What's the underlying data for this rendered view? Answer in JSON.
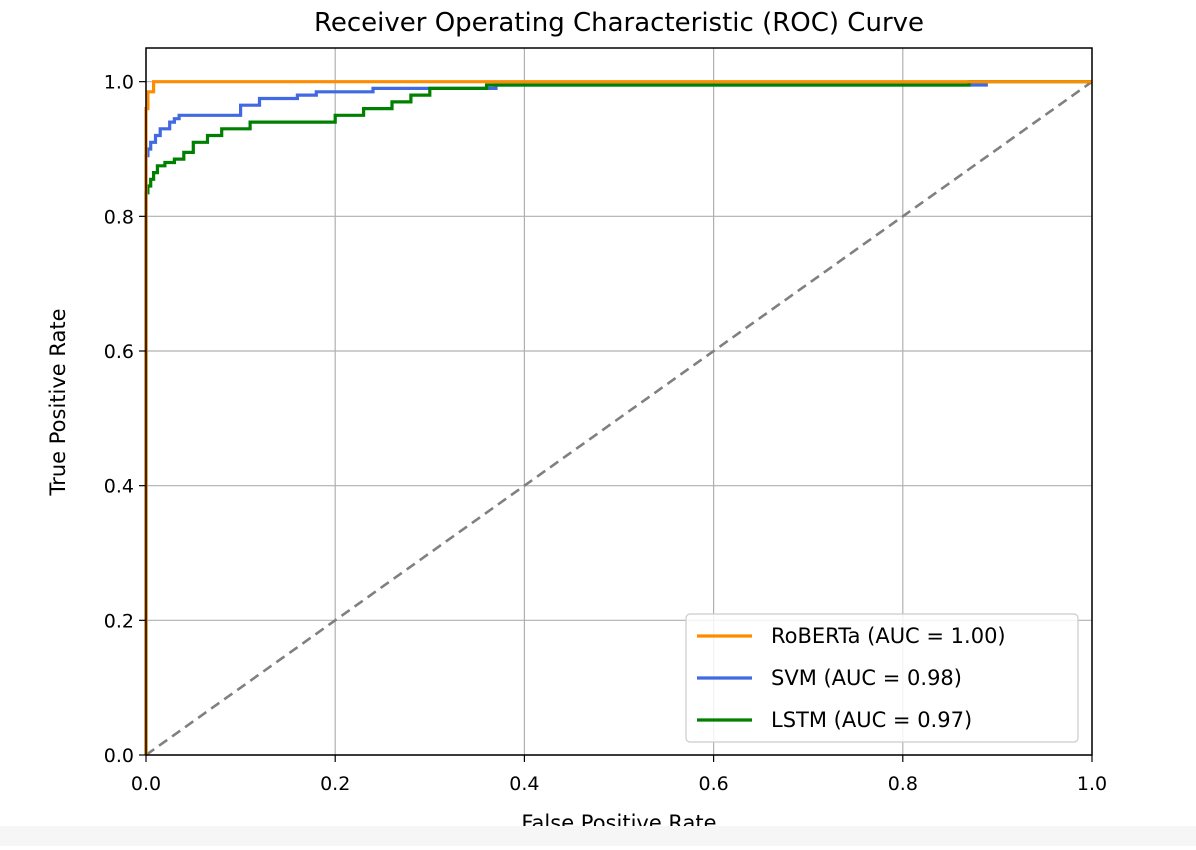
{
  "chart_data": {
    "type": "line",
    "title": "Receiver Operating Characteristic (ROC) Curve",
    "xlabel": "False Positive Rate",
    "ylabel": "True Positive Rate",
    "xlim": [
      0,
      1
    ],
    "ylim": [
      0,
      1.05
    ],
    "xticks": [
      "0.0",
      "0.2",
      "0.4",
      "0.6",
      "0.8",
      "1.0"
    ],
    "yticks": [
      "0.0",
      "0.2",
      "0.4",
      "0.6",
      "0.8",
      "1.0"
    ],
    "grid": true,
    "legend_position": "lower-right",
    "series": [
      {
        "name": "RoBERTa (AUC = 1.00)",
        "color": "#ff8c00",
        "x": [
          0,
          0,
          0.002,
          0.002,
          0.008,
          0.008,
          1.0
        ],
        "y": [
          0,
          0.96,
          0.96,
          0.985,
          0.985,
          1.0,
          1.0
        ]
      },
      {
        "name": "SVM (AUC = 0.98)",
        "color": "#4169e1",
        "x": [
          0,
          0,
          0.002,
          0.002,
          0.005,
          0.005,
          0.01,
          0.01,
          0.015,
          0.015,
          0.025,
          0.025,
          0.03,
          0.03,
          0.035,
          0.035,
          0.1,
          0.1,
          0.12,
          0.12,
          0.16,
          0.16,
          0.18,
          0.18,
          0.24,
          0.24,
          0.37,
          0.37,
          0.88,
          0.89
        ],
        "y": [
          0,
          0.89,
          0.89,
          0.9,
          0.9,
          0.91,
          0.91,
          0.92,
          0.92,
          0.93,
          0.93,
          0.94,
          0.94,
          0.945,
          0.945,
          0.95,
          0.95,
          0.965,
          0.965,
          0.975,
          0.975,
          0.98,
          0.98,
          0.985,
          0.985,
          0.99,
          0.99,
          0.995,
          0.995,
          0.995
        ]
      },
      {
        "name": "LSTM (AUC = 0.97)",
        "color": "#008000",
        "x": [
          0,
          0,
          0.002,
          0.002,
          0.005,
          0.005,
          0.008,
          0.008,
          0.012,
          0.012,
          0.02,
          0.02,
          0.03,
          0.03,
          0.04,
          0.04,
          0.05,
          0.05,
          0.065,
          0.065,
          0.08,
          0.08,
          0.11,
          0.11,
          0.2,
          0.2,
          0.23,
          0.23,
          0.26,
          0.26,
          0.28,
          0.28,
          0.3,
          0.3,
          0.36,
          0.36,
          0.87,
          0.87,
          1.0
        ],
        "y": [
          0,
          0.835,
          0.835,
          0.845,
          0.845,
          0.855,
          0.855,
          0.865,
          0.865,
          0.875,
          0.875,
          0.88,
          0.88,
          0.885,
          0.885,
          0.895,
          0.895,
          0.91,
          0.91,
          0.92,
          0.92,
          0.93,
          0.93,
          0.94,
          0.94,
          0.95,
          0.95,
          0.96,
          0.96,
          0.97,
          0.97,
          0.98,
          0.98,
          0.99,
          0.99,
          0.995,
          0.995,
          1.0,
          1.0
        ]
      },
      {
        "name": "",
        "color": "#808080",
        "style": "dashed",
        "x": [
          0,
          1
        ],
        "y": [
          0,
          1
        ]
      }
    ]
  }
}
